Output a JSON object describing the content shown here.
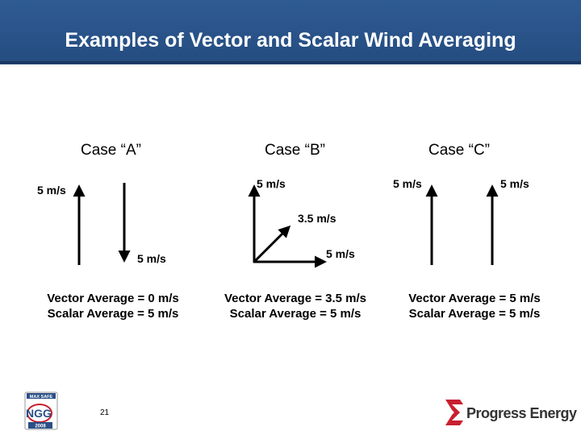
{
  "title": "Examples of Vector and Scalar Wind Averaging",
  "cases": {
    "a": {
      "title": "Case “A”",
      "label_up": "5 m/s",
      "label_down": "5 m/s",
      "vector_average": "Vector Average = 0 m/s",
      "scalar_average": "Scalar Average = 5 m/s"
    },
    "b": {
      "title": "Case “B”",
      "label_up": "5 m/s",
      "label_diagonal": "3.5 m/s",
      "label_right": "5 m/s",
      "vector_average": "Vector Average = 3.5 m/s",
      "scalar_average": "Scalar Average = 5 m/s"
    },
    "c": {
      "title": "Case “C”",
      "label_left": "5 m/s",
      "label_right": "5 m/s",
      "vector_average": "Vector Average = 5 m/s",
      "scalar_average": "Scalar Average = 5 m/s"
    }
  },
  "footer": {
    "page_number": "21",
    "logo_left_text_top": "MAX SAFE",
    "logo_left_text_main": "NGG",
    "logo_left_text_year": "2008",
    "brand": "Progress Energy"
  },
  "colors": {
    "header": "#2b5690",
    "arrow": "#000000",
    "brand_red": "#c8202f"
  }
}
